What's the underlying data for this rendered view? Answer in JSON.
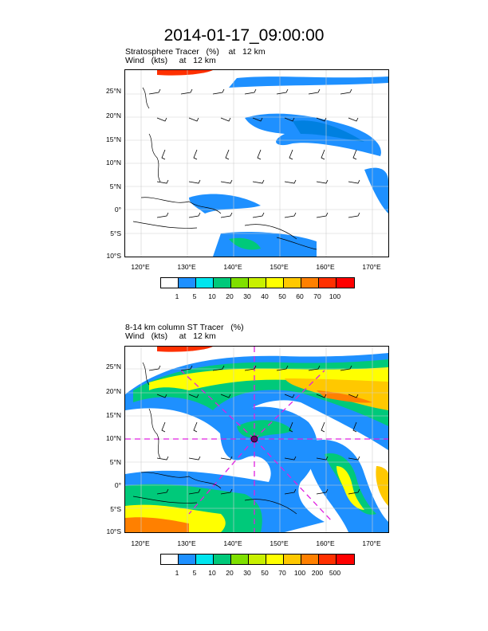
{
  "title": "2014-01-17_09:00:00",
  "panels": [
    {
      "name": "stratosphere-tracer",
      "label_line1": "Stratosphere Tracer   (%)    at   12 km",
      "label_line2": "Wind   (kts)     at   12 km",
      "lat_labels": [
        "25°N",
        "20°N",
        "15°N",
        "10°N",
        "5°N",
        "0°",
        "5°S",
        "10°S"
      ],
      "lon_labels": [
        "120°E",
        "130°E",
        "140°E",
        "150°E",
        "160°E",
        "170°E"
      ],
      "colorbar_labels": [
        "1",
        "5",
        "10",
        "20",
        "30",
        "40",
        "50",
        "60",
        "70",
        "100"
      ],
      "colorbar_colors": [
        "#ffffff",
        "#1e90ff",
        "#00e5ee",
        "#00c97a",
        "#7fe000",
        "#c8f000",
        "#ffff00",
        "#ffc800",
        "#ff8000",
        "#ff3000",
        "#ff0000"
      ]
    },
    {
      "name": "column-st-tracer",
      "label_line1": "8-14 km column ST Tracer   (%)",
      "label_line2": "Wind   (kts)     at   12 km",
      "lat_labels": [
        "25°N",
        "20°N",
        "15°N",
        "10°N",
        "5°N",
        "0°",
        "5°S",
        "10°S"
      ],
      "lon_labels": [
        "120°E",
        "130°E",
        "140°E",
        "150°E",
        "160°E",
        "170°E"
      ],
      "colorbar_labels": [
        "1",
        "5",
        "10",
        "20",
        "30",
        "50",
        "70",
        "100",
        "200",
        "500"
      ],
      "colorbar_colors": [
        "#ffffff",
        "#1e90ff",
        "#00e5ee",
        "#00c97a",
        "#7fe000",
        "#c8f000",
        "#ffff00",
        "#ffc800",
        "#ff8000",
        "#ff3000",
        "#ff0000"
      ]
    }
  ]
}
